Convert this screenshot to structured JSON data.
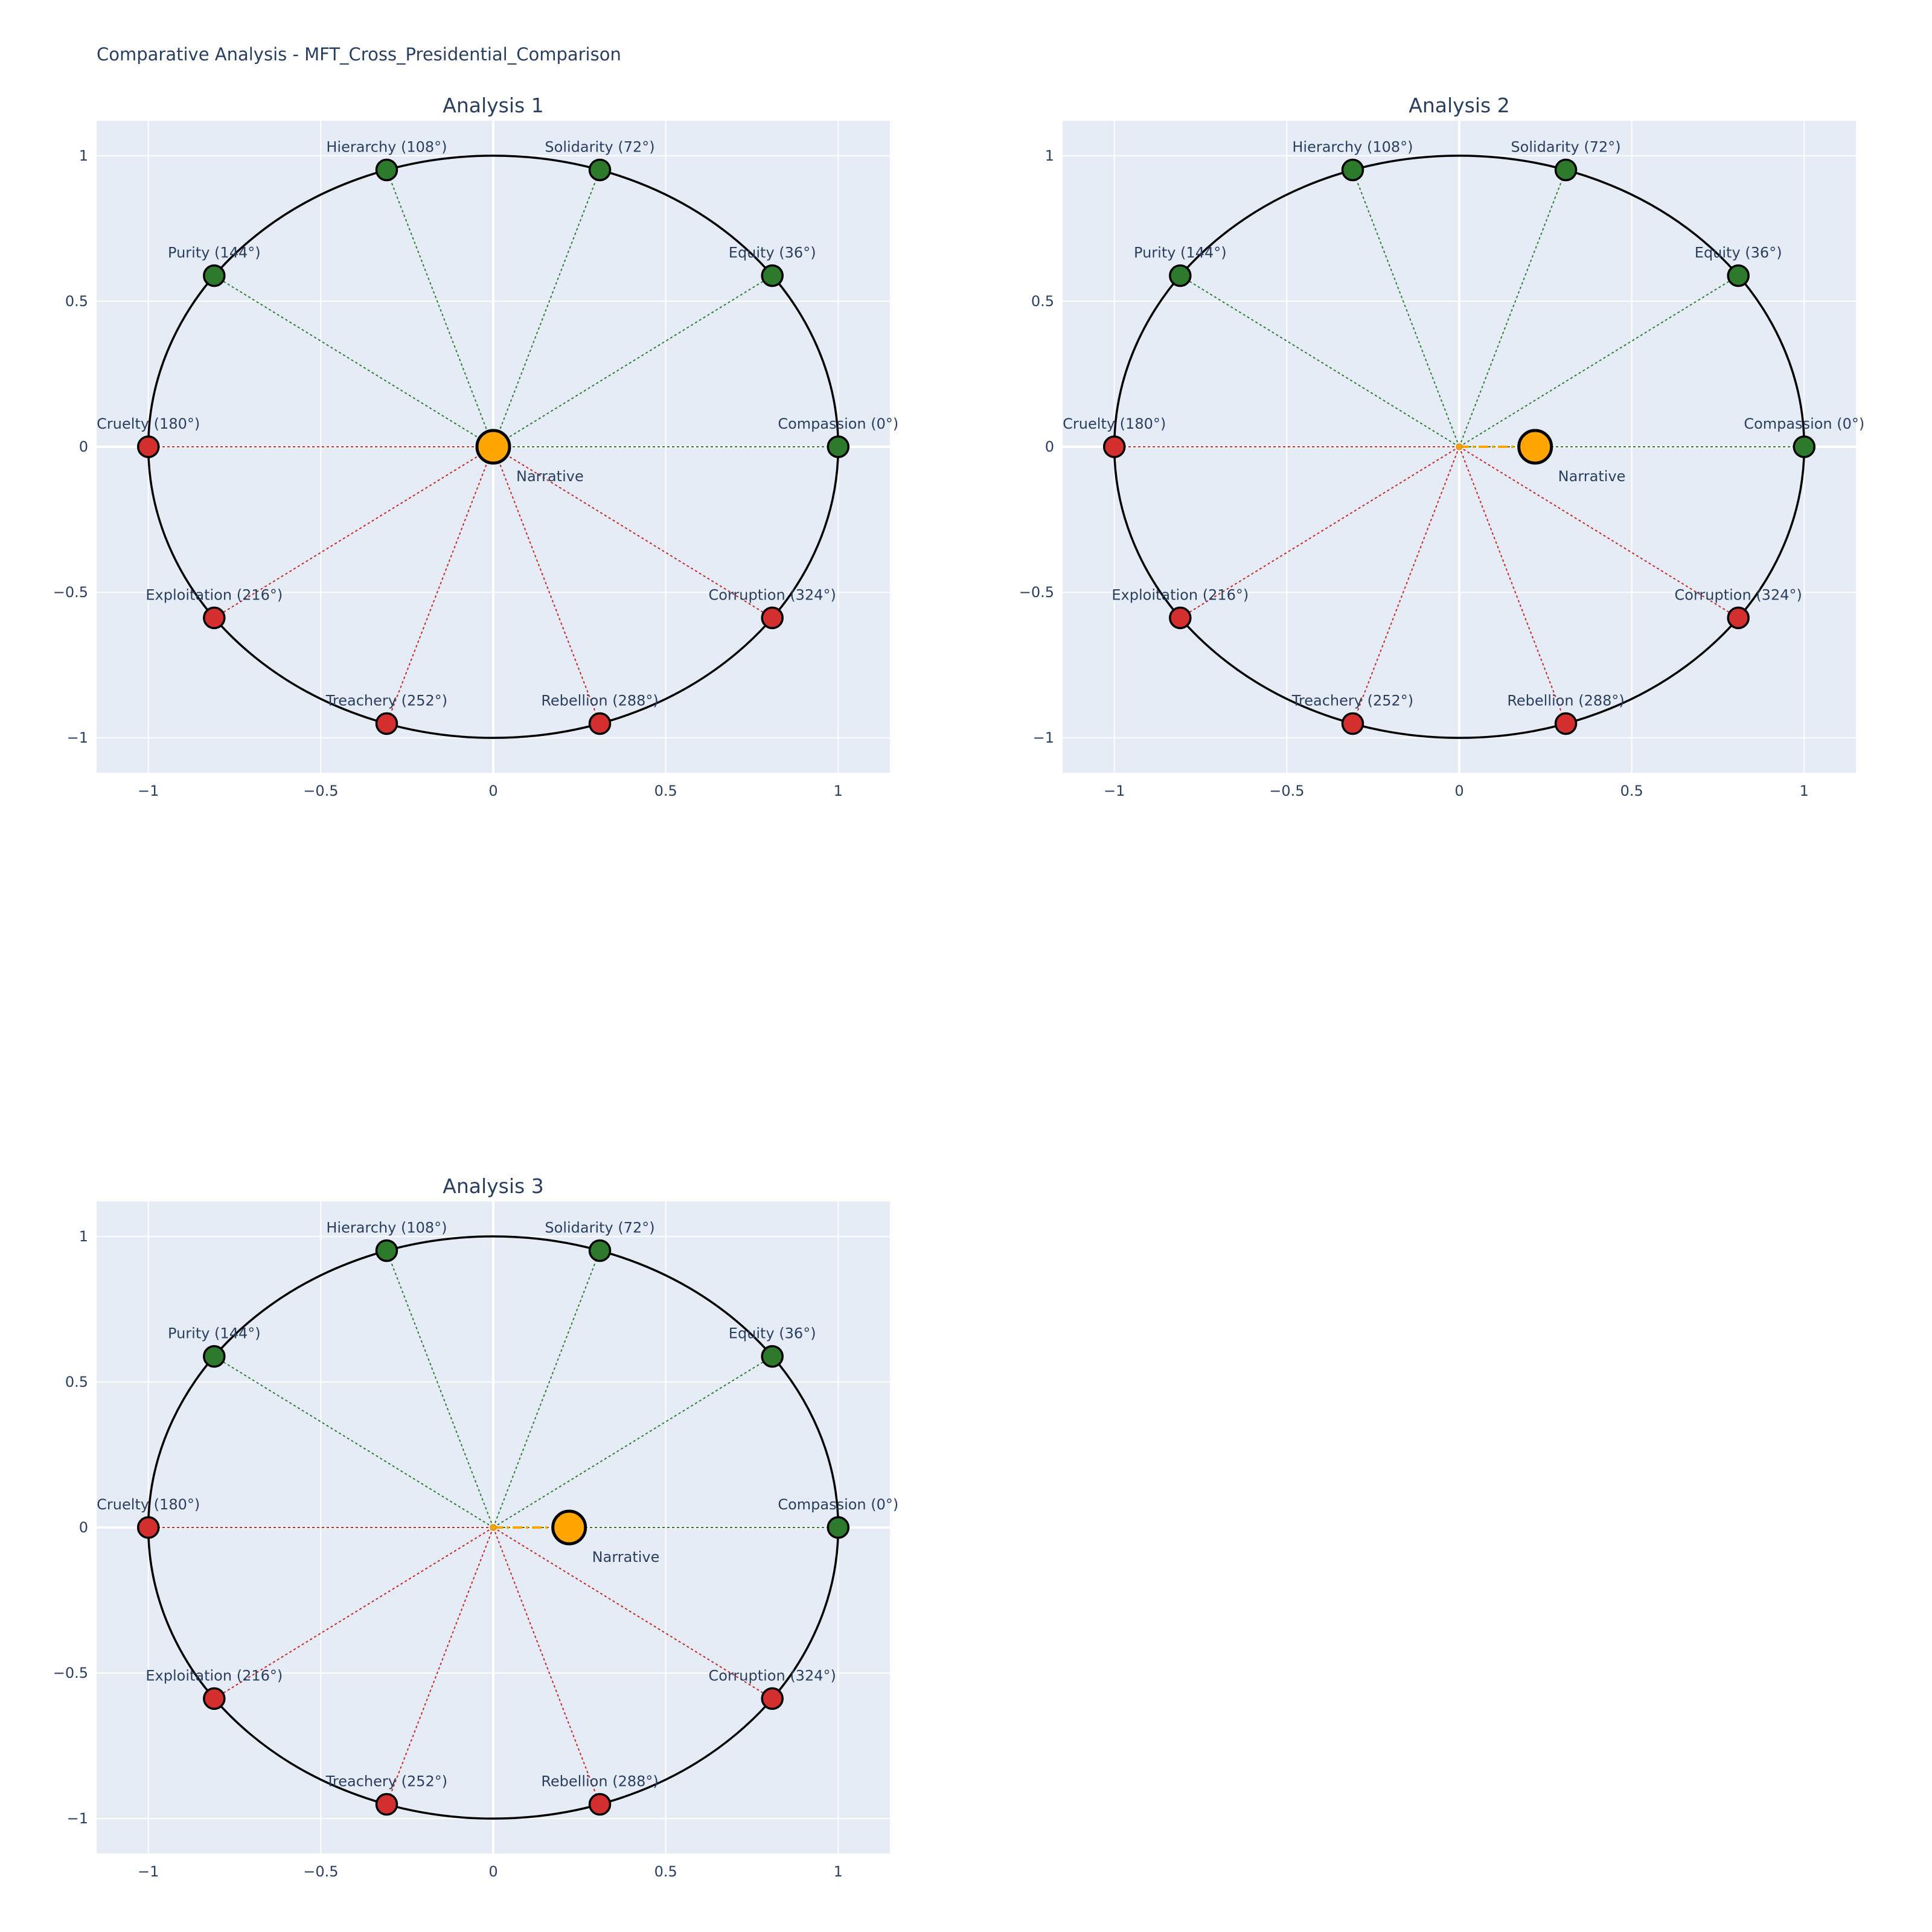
{
  "title": "Comparative Analysis - MFT_Cross_Presidential_Comparison",
  "colors": {
    "plot_bg": "#e5ecf6",
    "grid": "#ffffff",
    "circle": "#000000",
    "virtue": "#2d7a2d",
    "vice": "#d32f2f",
    "virtue_line": "#2e7d32",
    "vice_line": "#c62828",
    "narrative": "#ffa500",
    "text": "#2a3f5f"
  },
  "chart_data": [
    {
      "type": "scatter",
      "title": "Analysis 1",
      "xlim": [
        -1.15,
        1.15
      ],
      "ylim": [
        -1.12,
        1.12
      ],
      "xticks": [
        -1,
        -0.5,
        0,
        0.5,
        1
      ],
      "yticks": [
        -1,
        -0.5,
        0,
        0.5,
        1
      ],
      "xtick_labels": [
        "−1",
        "−0.5",
        "0",
        "0.5",
        "1"
      ],
      "ytick_labels": [
        "−1",
        "−0.5",
        "0",
        "0.5",
        "1"
      ],
      "grid": true,
      "unit_circle": true,
      "anchors": [
        {
          "label": "Compassion (0°)",
          "angle": 0,
          "kind": "virtue"
        },
        {
          "label": "Equity (36°)",
          "angle": 36,
          "kind": "virtue"
        },
        {
          "label": "Solidarity (72°)",
          "angle": 72,
          "kind": "virtue"
        },
        {
          "label": "Hierarchy (108°)",
          "angle": 108,
          "kind": "virtue"
        },
        {
          "label": "Purity (144°)",
          "angle": 144,
          "kind": "virtue"
        },
        {
          "label": "Cruelty (180°)",
          "angle": 180,
          "kind": "vice"
        },
        {
          "label": "Exploitation (216°)",
          "angle": 216,
          "kind": "vice"
        },
        {
          "label": "Treachery (252°)",
          "angle": 252,
          "kind": "vice"
        },
        {
          "label": "Rebellion (288°)",
          "angle": 288,
          "kind": "vice"
        },
        {
          "label": "Corruption (324°)",
          "angle": 324,
          "kind": "vice"
        }
      ],
      "narrative": {
        "label": "Narrative",
        "x": 0.0,
        "y": 0.0
      }
    },
    {
      "type": "scatter",
      "title": "Analysis 2",
      "xlim": [
        -1.15,
        1.15
      ],
      "ylim": [
        -1.12,
        1.12
      ],
      "xticks": [
        -1,
        -0.5,
        0,
        0.5,
        1
      ],
      "yticks": [
        -1,
        -0.5,
        0,
        0.5,
        1
      ],
      "xtick_labels": [
        "−1",
        "−0.5",
        "0",
        "0.5",
        "1"
      ],
      "ytick_labels": [
        "−1",
        "−0.5",
        "0",
        "0.5",
        "1"
      ],
      "grid": true,
      "unit_circle": true,
      "anchors": [
        {
          "label": "Compassion (0°)",
          "angle": 0,
          "kind": "virtue"
        },
        {
          "label": "Equity (36°)",
          "angle": 36,
          "kind": "virtue"
        },
        {
          "label": "Solidarity (72°)",
          "angle": 72,
          "kind": "virtue"
        },
        {
          "label": "Hierarchy (108°)",
          "angle": 108,
          "kind": "virtue"
        },
        {
          "label": "Purity (144°)",
          "angle": 144,
          "kind": "virtue"
        },
        {
          "label": "Cruelty (180°)",
          "angle": 180,
          "kind": "vice"
        },
        {
          "label": "Exploitation (216°)",
          "angle": 216,
          "kind": "vice"
        },
        {
          "label": "Treachery (252°)",
          "angle": 252,
          "kind": "vice"
        },
        {
          "label": "Rebellion (288°)",
          "angle": 288,
          "kind": "vice"
        },
        {
          "label": "Corruption (324°)",
          "angle": 324,
          "kind": "vice"
        }
      ],
      "narrative": {
        "label": "Narrative",
        "x": 0.22,
        "y": 0.0
      }
    },
    {
      "type": "scatter",
      "title": "Analysis 3",
      "xlim": [
        -1.15,
        1.15
      ],
      "ylim": [
        -1.12,
        1.12
      ],
      "xticks": [
        -1,
        -0.5,
        0,
        0.5,
        1
      ],
      "yticks": [
        -1,
        -0.5,
        0,
        0.5,
        1
      ],
      "xtick_labels": [
        "−1",
        "−0.5",
        "0",
        "0.5",
        "1"
      ],
      "ytick_labels": [
        "−1",
        "−0.5",
        "0",
        "0.5",
        "1"
      ],
      "grid": true,
      "unit_circle": true,
      "anchors": [
        {
          "label": "Compassion (0°)",
          "angle": 0,
          "kind": "virtue"
        },
        {
          "label": "Equity (36°)",
          "angle": 36,
          "kind": "virtue"
        },
        {
          "label": "Solidarity (72°)",
          "angle": 72,
          "kind": "virtue"
        },
        {
          "label": "Hierarchy (108°)",
          "angle": 108,
          "kind": "virtue"
        },
        {
          "label": "Purity (144°)",
          "angle": 144,
          "kind": "virtue"
        },
        {
          "label": "Cruelty (180°)",
          "angle": 180,
          "kind": "vice"
        },
        {
          "label": "Exploitation (216°)",
          "angle": 216,
          "kind": "vice"
        },
        {
          "label": "Treachery (252°)",
          "angle": 252,
          "kind": "vice"
        },
        {
          "label": "Rebellion (288°)",
          "angle": 288,
          "kind": "vice"
        },
        {
          "label": "Corruption (324°)",
          "angle": 324,
          "kind": "vice"
        }
      ],
      "narrative": {
        "label": "Narrative",
        "x": 0.22,
        "y": 0.0
      }
    }
  ]
}
